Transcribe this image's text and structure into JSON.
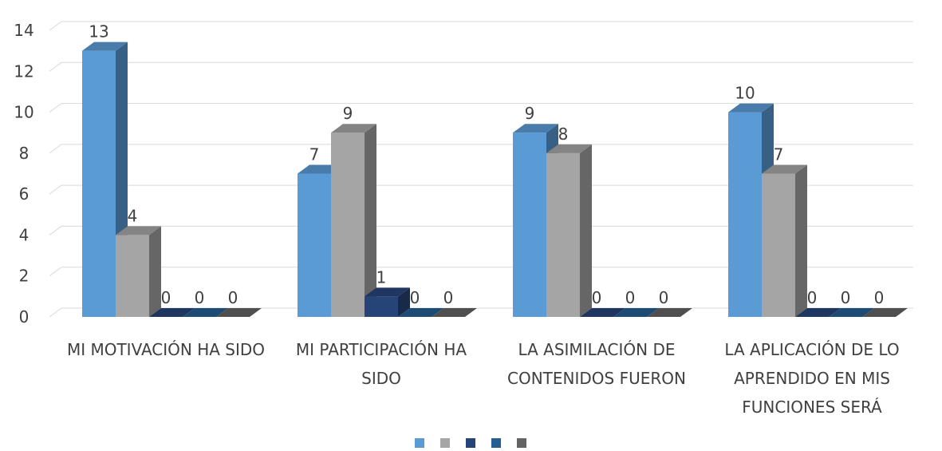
{
  "chart_data": {
    "type": "bar3d",
    "categories": [
      "MI MOTIVACIÓN HA SIDO",
      "MI PARTICIPACIÓN HA SIDO",
      "LA ASIMILACIÓN DE CONTENIDOS FUERON",
      "LA APLICACIÓN DE LO APRENDIDO EN MIS FUNCIONES SERÁ"
    ],
    "series": [
      {
        "color": "#5b9bd5",
        "values": [
          13,
          7,
          9,
          10
        ]
      },
      {
        "color": "#a5a5a5",
        "values": [
          4,
          9,
          8,
          7
        ]
      },
      {
        "color": "#264478",
        "values": [
          0,
          1,
          0,
          0
        ]
      },
      {
        "color": "#255e91",
        "values": [
          0,
          0,
          0,
          0
        ]
      },
      {
        "color": "#636363",
        "values": [
          0,
          0,
          0,
          0
        ]
      }
    ],
    "ylim": [
      0,
      14
    ],
    "yticks": [
      0,
      2,
      4,
      6,
      8,
      10,
      12,
      14
    ],
    "grid": true,
    "legend": "bottom"
  }
}
